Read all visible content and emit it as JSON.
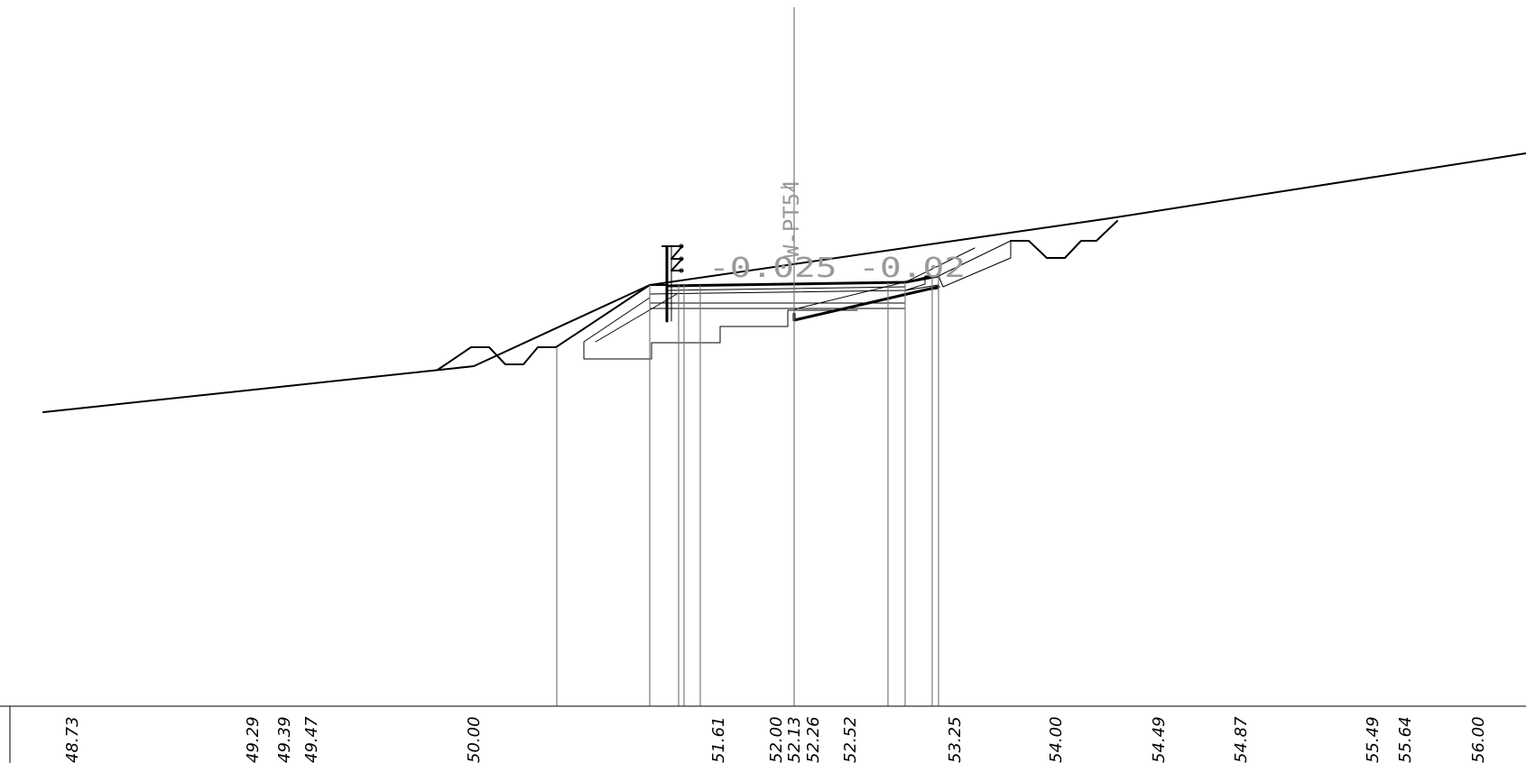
{
  "station_label": "W-PT54",
  "slope_label": "-0.025 -0.02",
  "elevations": [
    "48.73",
    "49.29",
    "49.39",
    "49.47",
    "50.00",
    "51.61",
    "52.00",
    "52.13",
    "52.26",
    "52.52",
    "53.25",
    "54.00",
    "54.49",
    "54.87",
    "55.49",
    "55.64",
    "56.00"
  ]
}
